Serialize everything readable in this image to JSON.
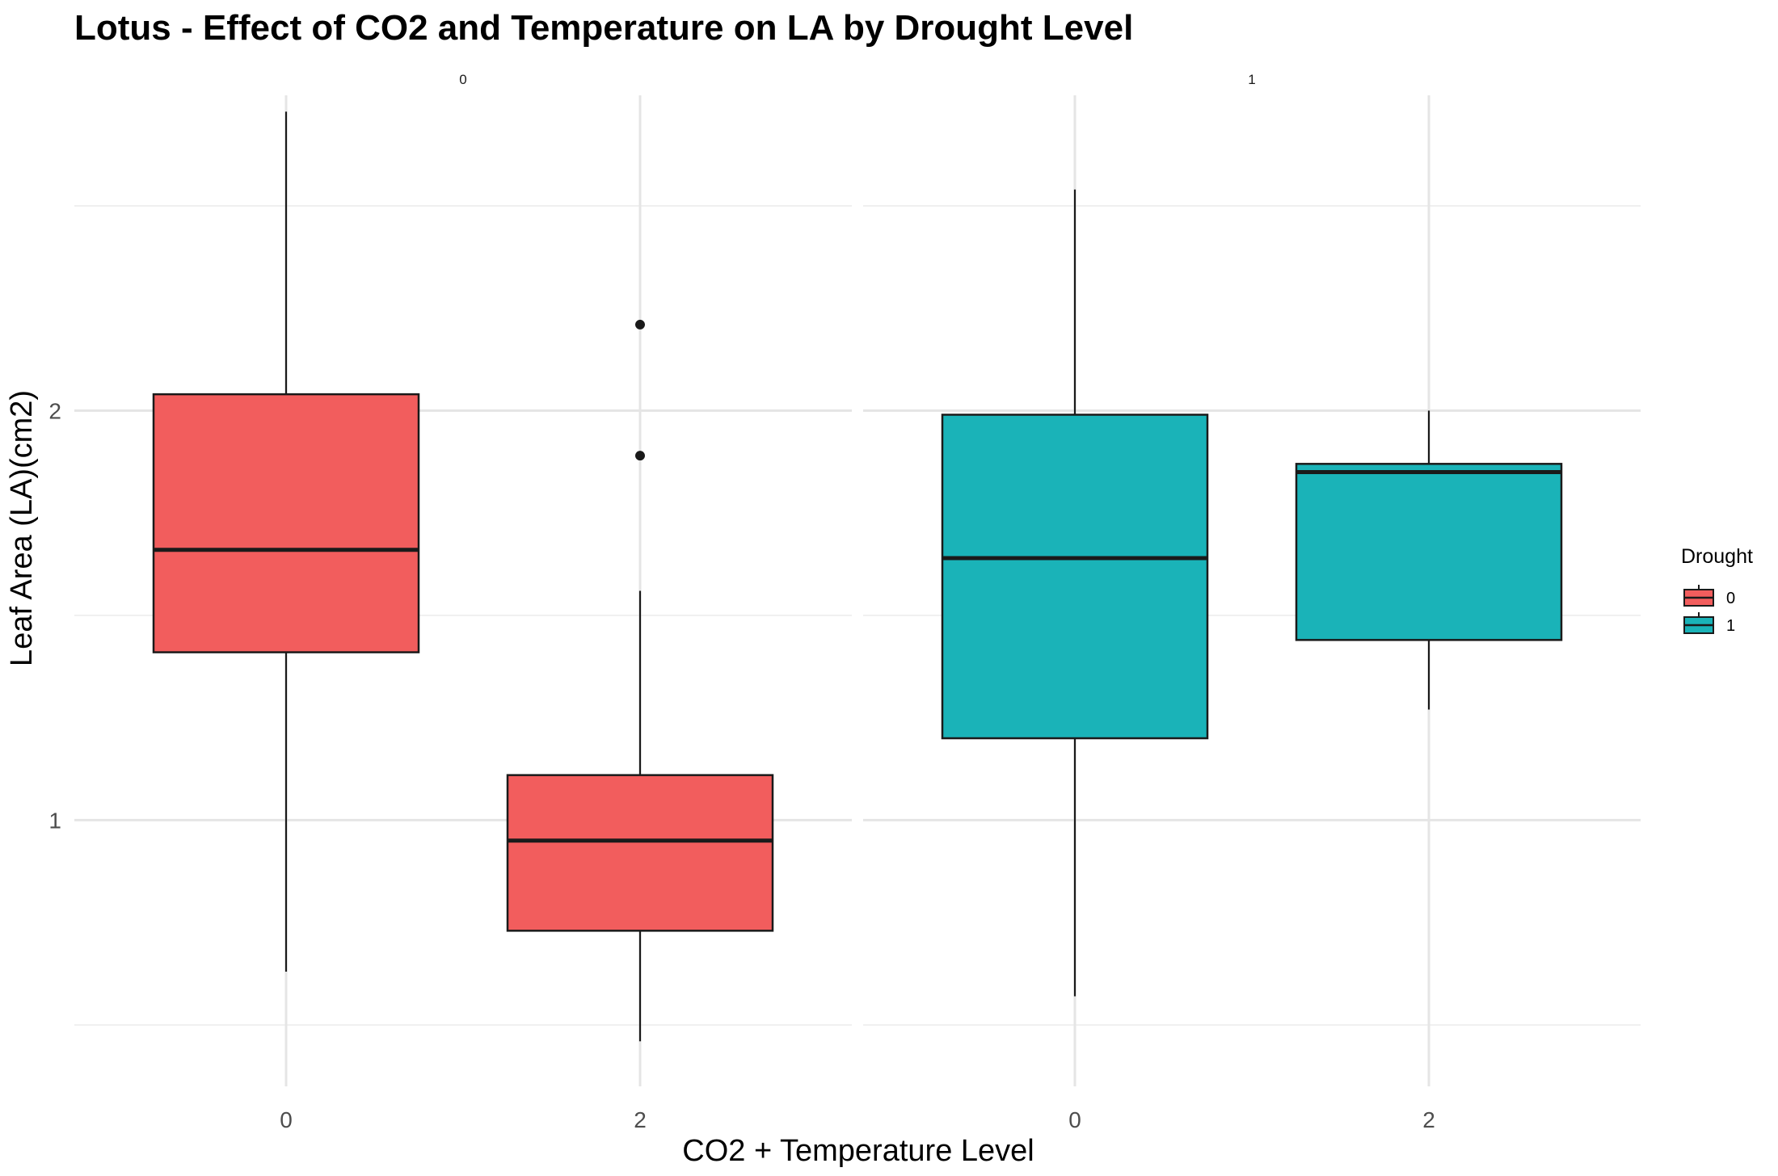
{
  "chart_data": {
    "type": "box",
    "title": "Lotus - Effect of CO2 and Temperature on LA by Drought Level",
    "xlabel": "CO2 + Temperature Level",
    "ylabel": "Leaf Area (LA)(cm2)",
    "ylim": [
      0.35,
      2.77
    ],
    "y_ticks": [
      1,
      2
    ],
    "y_minor_ticks": [
      0.5,
      1.5,
      2.5
    ],
    "grid": true,
    "legend": {
      "title": "Drought",
      "position": "right",
      "entries": [
        "0",
        "1"
      ]
    },
    "colors": {
      "0": "#F25D5D",
      "1": "#1AB3B8"
    },
    "panels": [
      {
        "strip_label": "0",
        "drought": "0",
        "categories": [
          "0",
          "2"
        ],
        "boxes": [
          {
            "x": "0",
            "whisker_low": 0.63,
            "q1": 1.41,
            "median": 1.66,
            "q3": 2.04,
            "whisker_high": 2.73,
            "outliers": []
          },
          {
            "x": "2",
            "whisker_low": 0.46,
            "q1": 0.73,
            "median": 0.95,
            "q3": 1.11,
            "whisker_high": 1.56,
            "outliers": [
              1.89,
              2.21
            ]
          }
        ]
      },
      {
        "strip_label": "1",
        "drought": "1",
        "categories": [
          "0",
          "2"
        ],
        "boxes": [
          {
            "x": "0",
            "whisker_low": 0.57,
            "q1": 1.2,
            "median": 1.64,
            "q3": 1.99,
            "whisker_high": 2.54,
            "outliers": []
          },
          {
            "x": "2",
            "whisker_low": 1.27,
            "q1": 1.44,
            "median": 1.85,
            "q3": 1.87,
            "whisker_high": 2.0,
            "outliers": []
          }
        ]
      }
    ]
  }
}
